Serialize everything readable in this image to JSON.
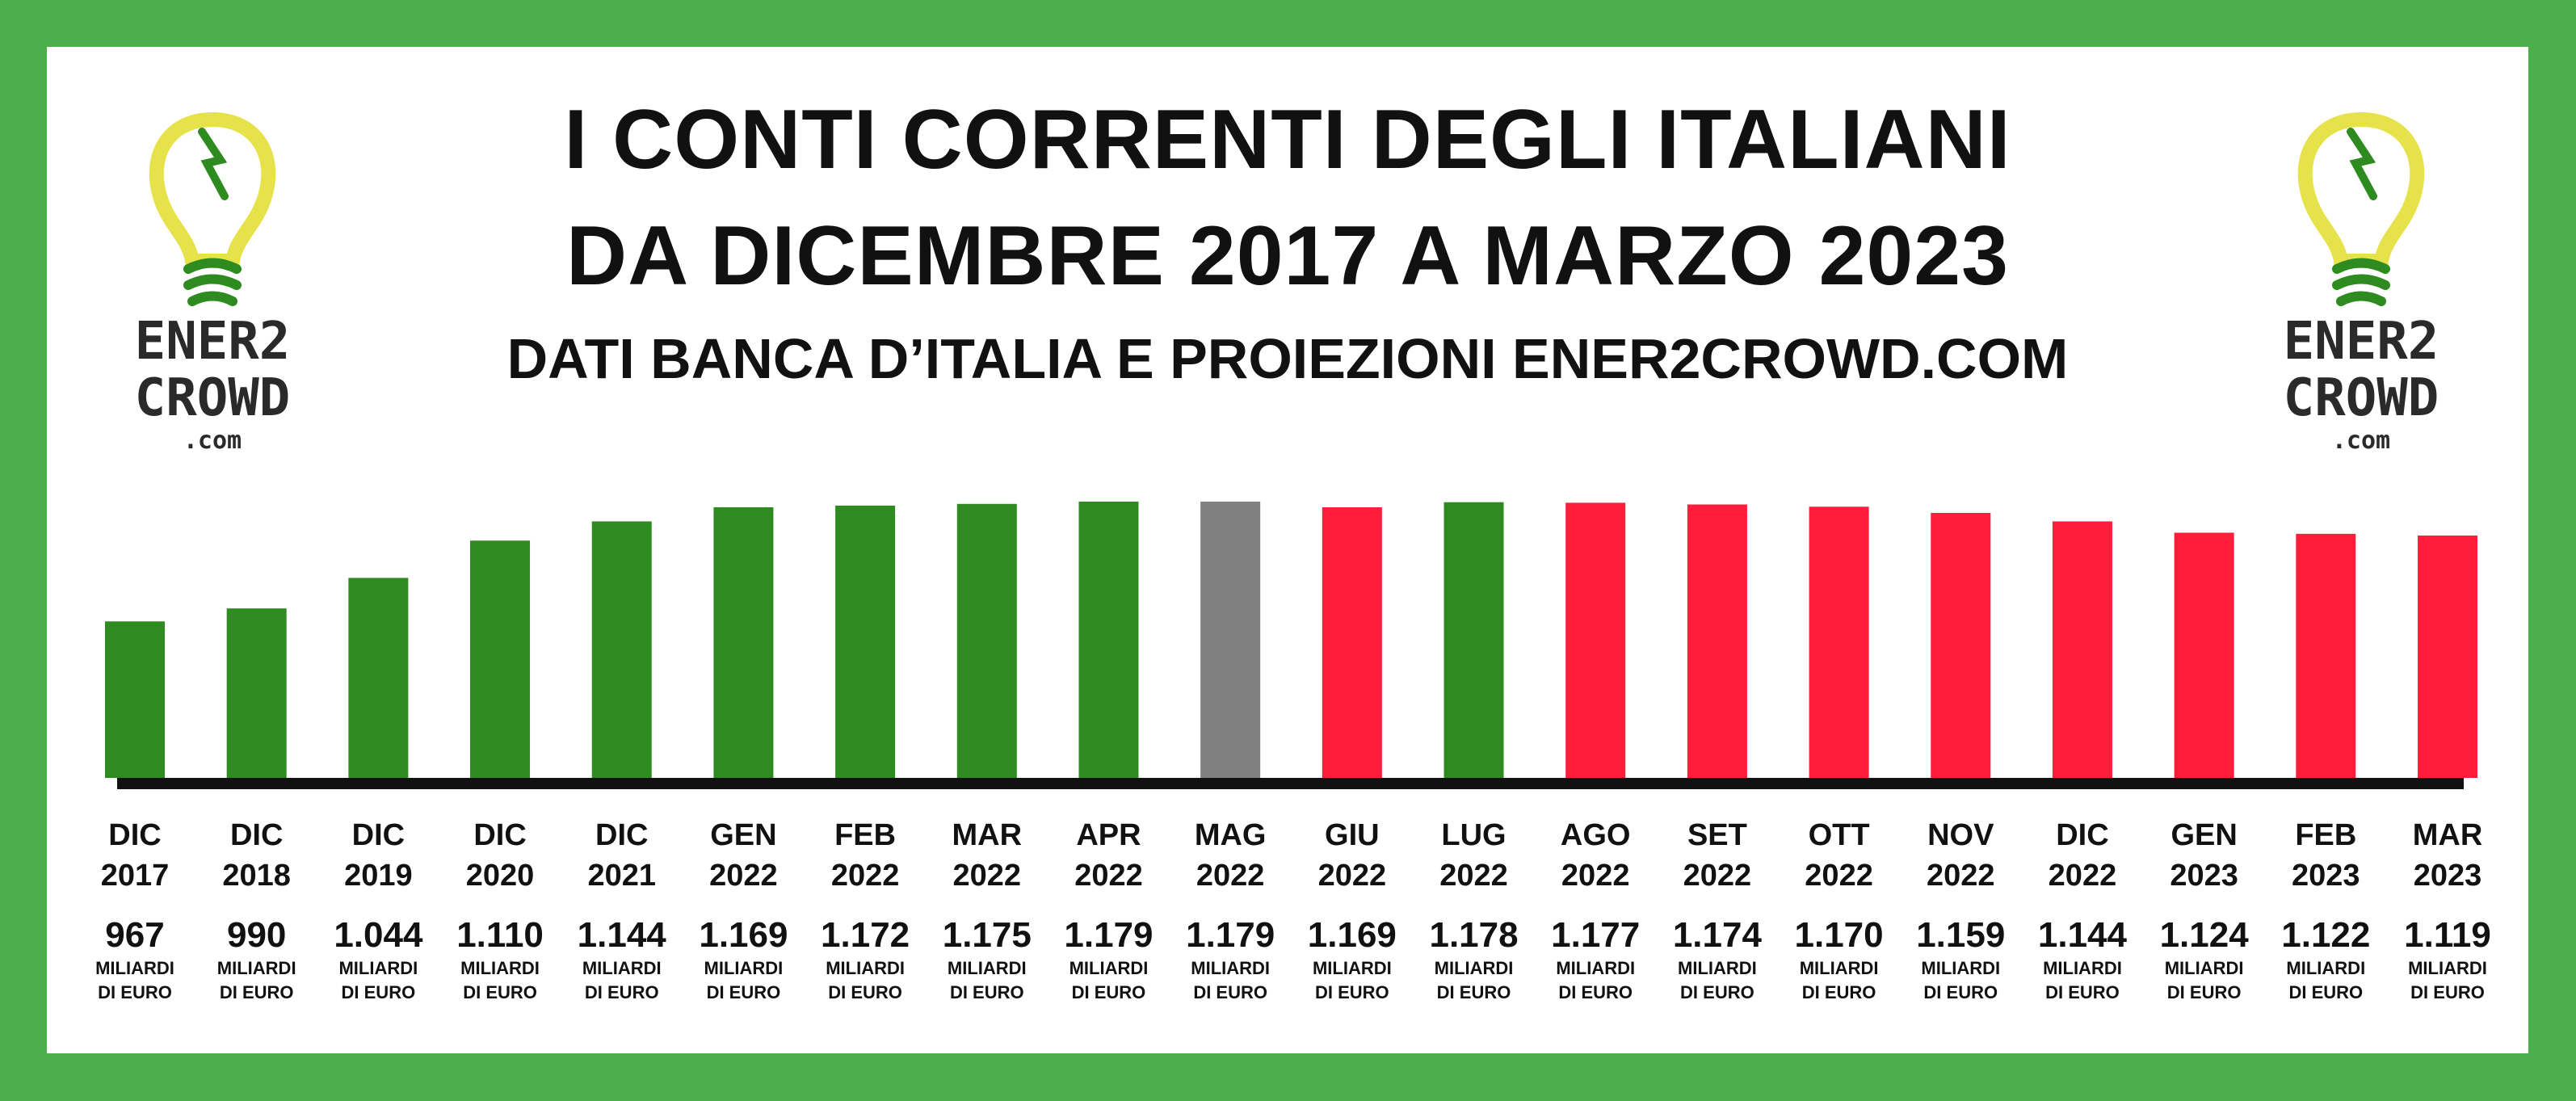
{
  "header": {
    "title_line1": "I CONTI CORRENTI DEGLI ITALIANI",
    "title_line2": "DA DICEMBRE 2017 A MARZO 2023",
    "subtitle": "DATI BANCA D’ITALIA E PROIEZIONI ENER2CROWD.COM"
  },
  "logo": {
    "line1": "ENER2",
    "line2": "CROWD",
    "line3": ".com"
  },
  "colors": {
    "frame": "#4caf4c",
    "actual": "#2e8b1f",
    "current": "#808080",
    "decline": "#ff1d3c",
    "axis": "#111111"
  },
  "chart_data": {
    "type": "bar",
    "unit_label_line1": "MILIARDI",
    "unit_label_line2": "DI EURO",
    "categories": [
      [
        "DIC",
        "2017"
      ],
      [
        "DIC",
        "2018"
      ],
      [
        "DIC",
        "2019"
      ],
      [
        "DIC",
        "2020"
      ],
      [
        "DIC",
        "2021"
      ],
      [
        "GEN",
        "2022"
      ],
      [
        "FEB",
        "2022"
      ],
      [
        "MAR",
        "2022"
      ],
      [
        "APR",
        "2022"
      ],
      [
        "MAG",
        "2022"
      ],
      [
        "GIU",
        "2022"
      ],
      [
        "LUG",
        "2022"
      ],
      [
        "AGO",
        "2022"
      ],
      [
        "SET",
        "2022"
      ],
      [
        "OTT",
        "2022"
      ],
      [
        "NOV",
        "2022"
      ],
      [
        "DIC",
        "2022"
      ],
      [
        "GEN",
        "2023"
      ],
      [
        "FEB",
        "2023"
      ],
      [
        "MAR",
        "2023"
      ]
    ],
    "values": [
      967,
      990,
      1044,
      1110,
      1144,
      1169,
      1172,
      1175,
      1179,
      1179,
      1169,
      1178,
      1177,
      1174,
      1170,
      1159,
      1144,
      1124,
      1122,
      1119
    ],
    "value_labels": [
      "967",
      "990",
      "1.044",
      "1.110",
      "1.144",
      "1.169",
      "1.172",
      "1.175",
      "1.179",
      "1.179",
      "1.169",
      "1.178",
      "1.177",
      "1.174",
      "1.170",
      "1.159",
      "1.144",
      "1.124",
      "1.122",
      "1.119"
    ],
    "bar_colors": [
      "actual",
      "actual",
      "actual",
      "actual",
      "actual",
      "actual",
      "actual",
      "actual",
      "actual",
      "current",
      "decline",
      "actual",
      "decline",
      "decline",
      "decline",
      "decline",
      "decline",
      "decline",
      "decline",
      "decline"
    ]
  }
}
